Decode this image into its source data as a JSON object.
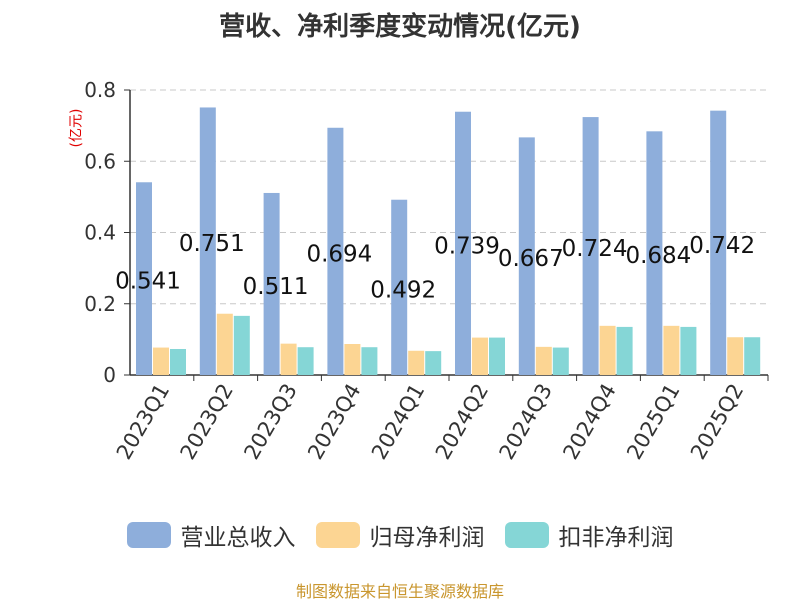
{
  "title": "营收、净利季度变动情况(亿元)",
  "unit_label": "(亿元)",
  "footer": "制图数据来自恒生聚源数据库",
  "colors": {
    "revenue": "#8eaedb",
    "net_profit": "#fcd593",
    "deducted_profit": "#85d6d6"
  },
  "chart_data": {
    "type": "bar",
    "categories": [
      "2023Q1",
      "2023Q2",
      "2023Q3",
      "2023Q4",
      "2024Q1",
      "2024Q2",
      "2024Q3",
      "2024Q4",
      "2025Q1",
      "2025Q2"
    ],
    "series": [
      {
        "name": "营业总收入",
        "values": [
          0.541,
          0.751,
          0.511,
          0.694,
          0.492,
          0.739,
          0.667,
          0.724,
          0.684,
          0.742
        ]
      },
      {
        "name": "归母净利润",
        "values": [
          0.077,
          0.172,
          0.088,
          0.087,
          0.068,
          0.105,
          0.079,
          0.138,
          0.138,
          0.106
        ]
      },
      {
        "name": "扣非净利润",
        "values": [
          0.073,
          0.166,
          0.078,
          0.078,
          0.067,
          0.105,
          0.077,
          0.135,
          0.135,
          0.106
        ]
      }
    ],
    "data_labels": [
      "0.541",
      "0.751",
      "0.511",
      "0.694",
      "0.492",
      "0.739",
      "0.667",
      "0.724",
      "0.684",
      "0.742"
    ],
    "ylim": [
      0,
      0.8
    ],
    "yticks": [
      "0",
      "0.2",
      "0.4",
      "0.6",
      "0.8"
    ],
    "grid": true,
    "legend_position": "bottom"
  }
}
